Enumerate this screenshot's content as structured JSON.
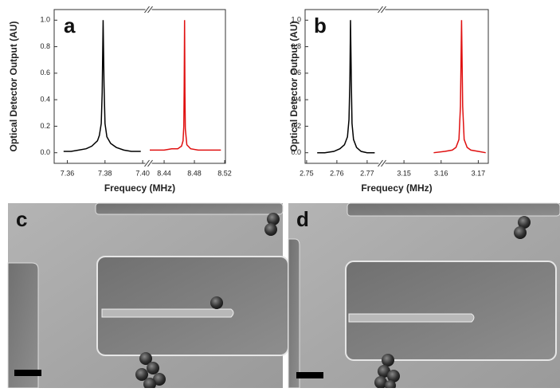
{
  "chart_data": [
    {
      "type": "line",
      "panel_label": "a",
      "xlabel": "Frequecy (MHz)",
      "ylabel": "Optical Detector Output (AU)",
      "ylim": [
        -0.08,
        1.08
      ],
      "yticks": [
        {
          "value": 0,
          "label": "0.0"
        },
        0.2,
        0.4,
        0.6,
        0.8,
        {
          "value": 1,
          "label": "1.0"
        }
      ],
      "xlim": [
        [
          7.353,
          7.4025
        ],
        [
          8.421,
          8.521
        ]
      ],
      "xticks": [
        [
          7.36,
          7.38,
          {
            "value": 7.4,
            "label": "7.40"
          }
        ],
        [
          8.44,
          8.48,
          8.52
        ]
      ],
      "series": [
        {
          "color": "#000000",
          "segment": 0,
          "x": [
            7.358,
            7.362,
            7.366,
            7.37,
            7.373,
            7.376,
            7.377,
            7.378,
            7.3785,
            7.379,
            7.3795,
            7.38,
            7.381,
            7.383,
            7.386,
            7.39,
            7.394,
            7.399
          ],
          "values": [
            0.01,
            0.01,
            0.02,
            0.03,
            0.05,
            0.09,
            0.13,
            0.22,
            0.45,
            1.0,
            0.5,
            0.22,
            0.12,
            0.07,
            0.04,
            0.02,
            0.01,
            0.01
          ]
        },
        {
          "color": "#e01010",
          "segment": 1,
          "x": [
            8.421,
            8.43,
            8.44,
            8.45,
            8.458,
            8.463,
            8.465,
            8.466,
            8.4665,
            8.467,
            8.4675,
            8.468,
            8.47,
            8.475,
            8.485,
            8.495,
            8.505,
            8.515
          ],
          "values": [
            0.02,
            0.02,
            0.02,
            0.03,
            0.03,
            0.05,
            0.09,
            0.2,
            0.5,
            1.0,
            0.45,
            0.18,
            0.06,
            0.03,
            0.02,
            0.02,
            0.02,
            0.02
          ]
        }
      ]
    },
    {
      "type": "line",
      "panel_label": "b",
      "xlabel": "Frequecy (MHz)",
      "ylabel": "Optical Detector Output (AU)",
      "ylim": [
        -0.08,
        1.08
      ],
      "yticks": [
        {
          "value": 0,
          "label": "0.0"
        },
        0.2,
        0.4,
        0.6,
        0.8,
        {
          "value": 1,
          "label": "1.0"
        }
      ],
      "xlim": [
        [
          2.7495,
          2.7745
        ],
        [
          3.1444,
          3.1727
        ]
      ],
      "xticks": [
        [
          2.75,
          2.76,
          2.77
        ],
        [
          3.15,
          3.16,
          3.17
        ]
      ],
      "series": [
        {
          "color": "#000000",
          "segment": 0,
          "x": [
            2.7535,
            2.756,
            2.759,
            2.761,
            2.7625,
            2.7635,
            2.764,
            2.7643,
            2.7645,
            2.7648,
            2.765,
            2.7655,
            2.7665,
            2.768,
            2.77,
            2.7725
          ],
          "values": [
            0.0,
            0.0,
            0.01,
            0.03,
            0.06,
            0.12,
            0.25,
            0.55,
            1.0,
            0.5,
            0.22,
            0.1,
            0.04,
            0.01,
            0.0,
            0.0
          ]
        },
        {
          "color": "#e01010",
          "segment": 1,
          "x": [
            3.158,
            3.161,
            3.163,
            3.164,
            3.1648,
            3.1652,
            3.1655,
            3.1658,
            3.1662,
            3.167,
            3.168,
            3.17,
            3.172
          ],
          "values": [
            0.0,
            0.01,
            0.02,
            0.04,
            0.1,
            0.35,
            1.0,
            0.35,
            0.1,
            0.04,
            0.02,
            0.01,
            0.0
          ]
        }
      ]
    }
  ],
  "images": [
    {
      "panel_label": "c"
    },
    {
      "panel_label": "d"
    }
  ]
}
